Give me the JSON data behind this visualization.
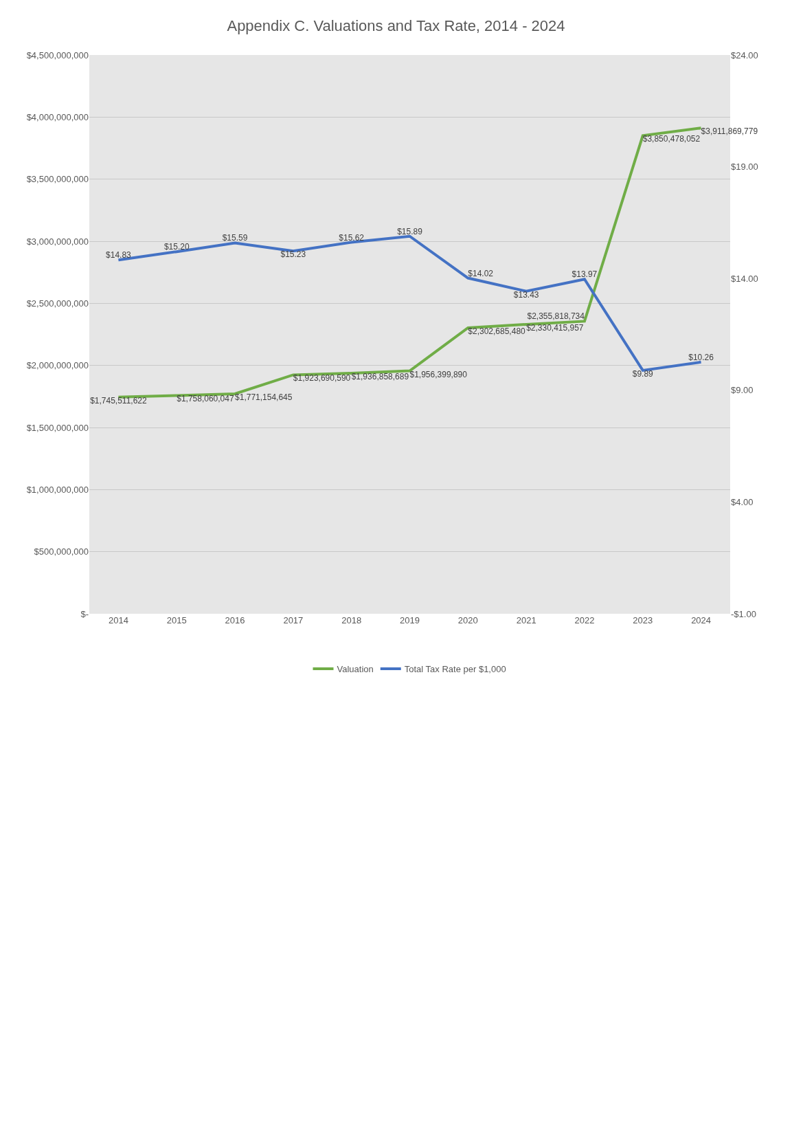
{
  "chart_data": {
    "type": "line",
    "title": "Appendix C. Valuations and Tax Rate, 2014 - 2024",
    "categories": [
      "2014",
      "2015",
      "2016",
      "2017",
      "2018",
      "2019",
      "2020",
      "2021",
      "2022",
      "2023",
      "2024"
    ],
    "series": [
      {
        "name": "Valuation",
        "color": "#70ad47",
        "values": [
          1745511622,
          1758060047,
          1771154645,
          1923690590,
          1936858689,
          1956399890,
          2302685480,
          2330415957,
          2355818734,
          3850478052,
          3911869779
        ],
        "value_labels": [
          "$1,745,511,622",
          "$1,758,060,047",
          "$1,771,154,645",
          "$1,923,690,590",
          "$1,936,858,689",
          "$1,956,399,890",
          "$2,302,685,480",
          "$2,330,415,957",
          "$2,355,818,734",
          "$3,850,478,052",
          "$3,911,869,779"
        ]
      },
      {
        "name": "Total Tax Rate per $1,000",
        "color": "#4472c4",
        "axis": "y2",
        "values": [
          14.83,
          15.2,
          15.59,
          15.23,
          15.62,
          15.89,
          14.02,
          13.43,
          13.97,
          9.89,
          10.26
        ],
        "value_labels": [
          "$14.83",
          "$15.20",
          "$15.59",
          "$15.23",
          "$15.62",
          "$15.89",
          "$14.02",
          "$13.43",
          "$13.97",
          "$9.89",
          "$10.26"
        ]
      }
    ],
    "ylim": [
      0,
      4500000000
    ],
    "yticks": [
      {
        "value": 0,
        "label": "$-"
      },
      {
        "value": 500000000,
        "label": "$500,000,000"
      },
      {
        "value": 1000000000,
        "label": "$1,000,000,000"
      },
      {
        "value": 1500000000,
        "label": "$1,500,000,000"
      },
      {
        "value": 2000000000,
        "label": "$2,000,000,000"
      },
      {
        "value": 2500000000,
        "label": "$2,500,000,000"
      },
      {
        "value": 3000000000,
        "label": "$3,000,000,000"
      },
      {
        "value": 3500000000,
        "label": "$3,500,000,000"
      },
      {
        "value": 4000000000,
        "label": "$4,000,000,000"
      },
      {
        "value": 4500000000,
        "label": "$4,500,000,000"
      }
    ],
    "y2lim": [
      -1,
      24
    ],
    "y2ticks": [
      {
        "value": -1,
        "label": "-$1.00"
      },
      {
        "value": 4,
        "label": "$4.00"
      },
      {
        "value": 9,
        "label": "$9.00"
      },
      {
        "value": 14,
        "label": "$14.00"
      },
      {
        "value": 19,
        "label": "$19.00"
      },
      {
        "value": 24,
        "label": "$24.00"
      }
    ],
    "grid": "y",
    "legend": "bottom",
    "marker": "none",
    "line_style": "solid"
  }
}
